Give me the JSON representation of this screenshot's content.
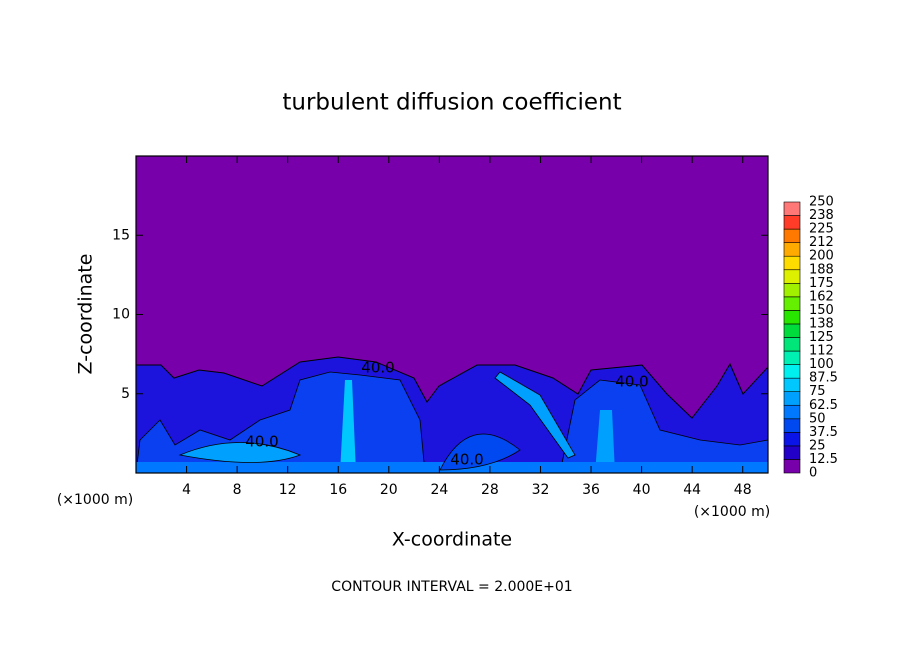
{
  "chart_data": {
    "type": "contour",
    "title": "turbulent diffusion coefficient",
    "x_label": "X-coordinate",
    "y_label": "Z-coordinate",
    "x_unit": "(×1000 m)",
    "y_unit": "(×1000 m)",
    "xlim": [
      0,
      50
    ],
    "ylim": [
      0,
      20
    ],
    "xticks": [
      4,
      8,
      12,
      16,
      20,
      24,
      28,
      32,
      36,
      40,
      44,
      48
    ],
    "yticks": [
      5,
      10,
      15
    ],
    "colorbar": {
      "levels": [
        0,
        12.5,
        25,
        37.5,
        50,
        62.5,
        75,
        87.5,
        100,
        112,
        125,
        138,
        150,
        162,
        175,
        188,
        200,
        212,
        225,
        238,
        250
      ],
      "colors": [
        "#7800aa",
        "#2200c8",
        "#0a14e6",
        "#0048f0",
        "#0078ff",
        "#00a0ff",
        "#00c8ff",
        "#00f0f0",
        "#00f0b4",
        "#00e678",
        "#00dc3c",
        "#28e600",
        "#64f000",
        "#a0f000",
        "#dcf000",
        "#ffdc00",
        "#ffaa00",
        "#ff7800",
        "#ff3c28",
        "#ff7878"
      ]
    },
    "contour_labels": [
      "40.0",
      "40.0",
      "40.0",
      "40.0"
    ],
    "footer": "CONTOUR INTERVAL = 2.000E+01"
  }
}
